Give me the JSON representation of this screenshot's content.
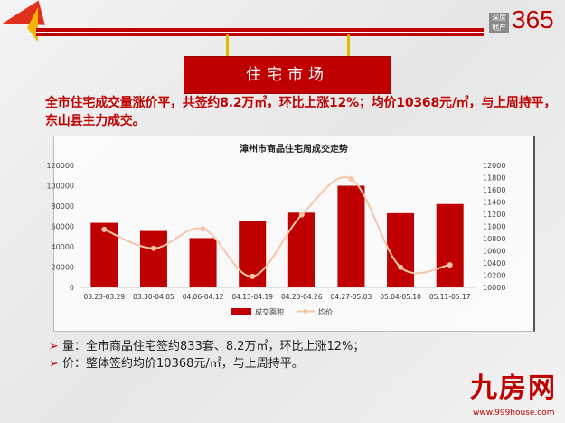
{
  "header": {
    "logo_top": "深度",
    "logo_bottom": "地产",
    "logo_num": "365",
    "banner": "住宅市场"
  },
  "headline": "全市住宅成交量涨价平，共签约8.2万㎡，环比上涨12%；均价10368元/㎡，与上周持平，东山县主力成交。",
  "bullets": [
    "量：全市商品住宅签约833套、8.2万㎡，环比上涨12%；",
    "价：整体签约均价10368元/㎡，与上周持平。"
  ],
  "watermark": {
    "name": "九房网",
    "url": "www.999house.com"
  },
  "colors": {
    "bar": "#c00000",
    "line": "#f5c7a9"
  },
  "chart_data": {
    "type": "bar+line",
    "title": "漳州市商品住宅周成交走势",
    "categories": [
      "03.23-03.29",
      "03.30-04.05",
      "04.06-04.12",
      "04.13-04.19",
      "04.20-04.26",
      "04.27-05.03",
      "05.04-05.10",
      "05.11-05.17"
    ],
    "series": [
      {
        "name": "成交面积",
        "type": "bar",
        "axis": "left",
        "values": [
          63500,
          55500,
          48500,
          65500,
          73500,
          100000,
          73000,
          82000
        ]
      },
      {
        "name": "均价",
        "type": "line",
        "axis": "right",
        "values": [
          10950,
          10640,
          10960,
          10180,
          11190,
          11780,
          10330,
          10368
        ]
      }
    ],
    "ylim_left": [
      0,
      120000
    ],
    "yticks_left": [
      0,
      20000,
      40000,
      60000,
      80000,
      100000,
      120000
    ],
    "ylim_right": [
      10000,
      12000
    ],
    "yticks_right": [
      10000,
      10200,
      10400,
      10600,
      10800,
      11000,
      11200,
      11400,
      11600,
      11800,
      12000
    ],
    "legend": "bottom",
    "grid": false
  }
}
